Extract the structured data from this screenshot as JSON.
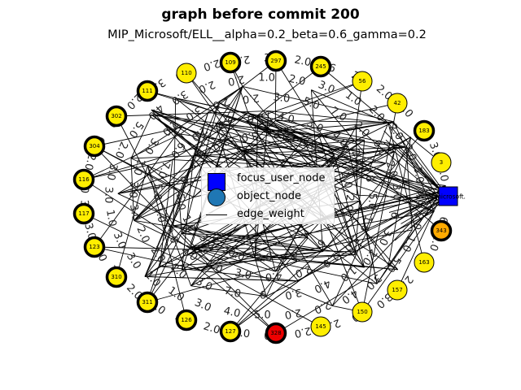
{
  "header": {
    "title": "graph before commit 200",
    "subtitle": "MIP_Microsoft/ELL__alpha=0.2_beta=0.6_gamma=0.2"
  },
  "colors": {
    "node_yellow": "#ffee00",
    "node_orange": "#ffaa00",
    "node_red": "#ee0000",
    "focus_blue": "#0000ff",
    "object_blue": "#1f77b4"
  },
  "legend": {
    "focus_label": "focus_user_node",
    "object_label": "object_node",
    "edge_label": "edge_weight"
  },
  "focus_node": {
    "label": "aferl@microsoft.",
    "icon": "square-marker"
  },
  "nodes": [
    {
      "id": "109",
      "label": "109",
      "color": "yellow",
      "thick": true
    },
    {
      "id": "297",
      "label": "297",
      "color": "yellow",
      "thick": true
    },
    {
      "id": "245",
      "label": "245",
      "color": "yellow",
      "thick": true
    },
    {
      "id": "56",
      "label": "56",
      "color": "yellow",
      "thick": false
    },
    {
      "id": "42",
      "label": "42",
      "color": "yellow",
      "thick": false
    },
    {
      "id": "183",
      "label": "183",
      "color": "yellow",
      "thick": true
    },
    {
      "id": "3",
      "label": "3",
      "color": "yellow",
      "thick": false
    },
    {
      "id": "343",
      "label": "343",
      "color": "orange",
      "thick": true
    },
    {
      "id": "163",
      "label": "163",
      "color": "yellow",
      "thick": false
    },
    {
      "id": "157",
      "label": "157",
      "color": "yellow",
      "thick": false
    },
    {
      "id": "150",
      "label": "150",
      "color": "yellow",
      "thick": false
    },
    {
      "id": "145",
      "label": "145",
      "color": "yellow",
      "thick": false
    },
    {
      "id": "328",
      "label": "328",
      "color": "red",
      "thick": true
    },
    {
      "id": "127",
      "label": "127",
      "color": "yellow",
      "thick": true
    },
    {
      "id": "126",
      "label": "126",
      "color": "yellow",
      "thick": true
    },
    {
      "id": "311",
      "label": "311",
      "color": "yellow",
      "thick": true
    },
    {
      "id": "310",
      "label": "310",
      "color": "yellow",
      "thick": true
    },
    {
      "id": "123",
      "label": "123",
      "color": "yellow",
      "thick": true
    },
    {
      "id": "117",
      "label": "117",
      "color": "yellow",
      "thick": true
    },
    {
      "id": "116",
      "label": "116",
      "color": "yellow",
      "thick": true
    },
    {
      "id": "304",
      "label": "304",
      "color": "yellow",
      "thick": true
    },
    {
      "id": "302",
      "label": "302",
      "color": "yellow",
      "thick": true
    },
    {
      "id": "111",
      "label": "111",
      "color": "yellow",
      "thick": true
    },
    {
      "id": "110",
      "label": "110",
      "color": "yellow",
      "thick": false
    }
  ],
  "edge_weight_labels": [
    "9.0",
    "6",
    "2.0",
    "7.0",
    "2.0",
    "3.0",
    "3.0",
    "2.0",
    "2.0",
    "3.0",
    "4.0",
    "2.0",
    "2.0",
    "3.0",
    "2.0",
    "7.0",
    "2.0",
    "3.0",
    "3.0",
    "2.0",
    "2.0",
    "6",
    "3.0",
    "2.0",
    "3.0",
    "4.0",
    "2.0",
    "2.0",
    "3.0",
    "2.0",
    "6",
    "2.0",
    "2.0",
    "3.0",
    "3.0",
    "3.0",
    "2.0",
    "2.0",
    "1.0",
    "5.0",
    "3.0",
    "4.0",
    "2.0",
    "2.0",
    "5.0",
    "4.0",
    "3.0",
    "1.0",
    "1.0",
    "3.0",
    "3.0",
    "1.0",
    "3.0",
    "3.0",
    "2.0",
    "5.0",
    "4.0",
    "3.0",
    "2.0",
    "2.0",
    "1.0",
    "2.0",
    "3.0",
    "1.0",
    "2.0",
    "2.0",
    "2.0",
    "3.0",
    "3.0",
    "3.0",
    "2.0",
    "1.0",
    "4.0",
    "3.0",
    "6",
    "7.0",
    "3.0",
    "2.0",
    "2.0",
    "2.0",
    "3.0",
    "3.0",
    "2.0",
    "3.0",
    "2.0",
    "3.0",
    "2.0",
    "2.0",
    "3.0",
    "5.0",
    "7.0",
    "2.0",
    "6.0",
    "2.0",
    "3.0",
    "6",
    "5.0",
    "1.0",
    "2.0",
    "4.0",
    "3.0",
    "1.0",
    "2.0",
    "3.0",
    "1.0",
    "5.0",
    "7.0",
    "6.0",
    "2.0",
    "3.0",
    "2.0",
    "4.0",
    "3.0",
    "4.0",
    "2.0",
    "8",
    "5.0",
    "1.0",
    "6",
    "4",
    "2.0",
    "20.0",
    "3.0",
    "1.0",
    "5.0",
    "6",
    "3.0",
    "2.0",
    "3.0",
    "2.0",
    "3.0",
    "4",
    "2.0",
    "2.0"
  ]
}
